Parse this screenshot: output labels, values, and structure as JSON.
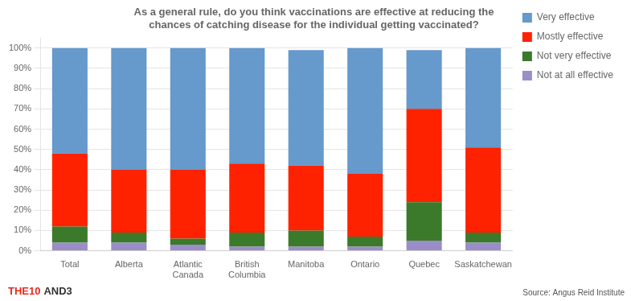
{
  "chart_data": {
    "type": "bar",
    "stacked": true,
    "title": "As a general rule, do you think vaccinations are effective at reducing the\nchances of catching disease for the individual getting vaccinated?",
    "categories": [
      "Total",
      "Alberta",
      "Atlantic\nCanada",
      "British\nColumbia",
      "Manitoba",
      "Ontario",
      "Quebec",
      "Saskatchewan"
    ],
    "series": [
      {
        "name": "Not at all effective",
        "color": "#9b8dc8",
        "values": [
          4,
          4,
          3,
          2,
          2,
          2,
          5,
          4
        ]
      },
      {
        "name": "Not very effective",
        "color": "#3a7a2a",
        "values": [
          8,
          5,
          3,
          7,
          8,
          5,
          19,
          5
        ]
      },
      {
        "name": "Mostly effective",
        "color": "#ff2200",
        "values": [
          36,
          31,
          34,
          34,
          32,
          31,
          46,
          42
        ]
      },
      {
        "name": "Very effective",
        "color": "#6699cc",
        "values": [
          52,
          60,
          60,
          57,
          57,
          62,
          29,
          49
        ]
      }
    ],
    "ylim": [
      0,
      105
    ],
    "yticks": [
      {
        "value": 0,
        "label": "0%"
      },
      {
        "value": 10,
        "label": "10%"
      },
      {
        "value": 20,
        "label": "20%"
      },
      {
        "value": 30,
        "label": "30%"
      },
      {
        "value": 40,
        "label": "40%"
      },
      {
        "value": 50,
        "label": "50%"
      },
      {
        "value": 60,
        "label": "60%"
      },
      {
        "value": 70,
        "label": "70%"
      },
      {
        "value": 80,
        "label": "80%"
      },
      {
        "value": 90,
        "label": "90%"
      },
      {
        "value": 100,
        "label": "100%"
      }
    ],
    "grid": true,
    "legend": "right",
    "annotations": [
      {
        "text": "THE10",
        "color": "#e8291c"
      },
      {
        "text": "AND3",
        "color": "#333333"
      },
      {
        "text": "Source: Angus Reid Institute",
        "color": "#555555"
      }
    ]
  }
}
